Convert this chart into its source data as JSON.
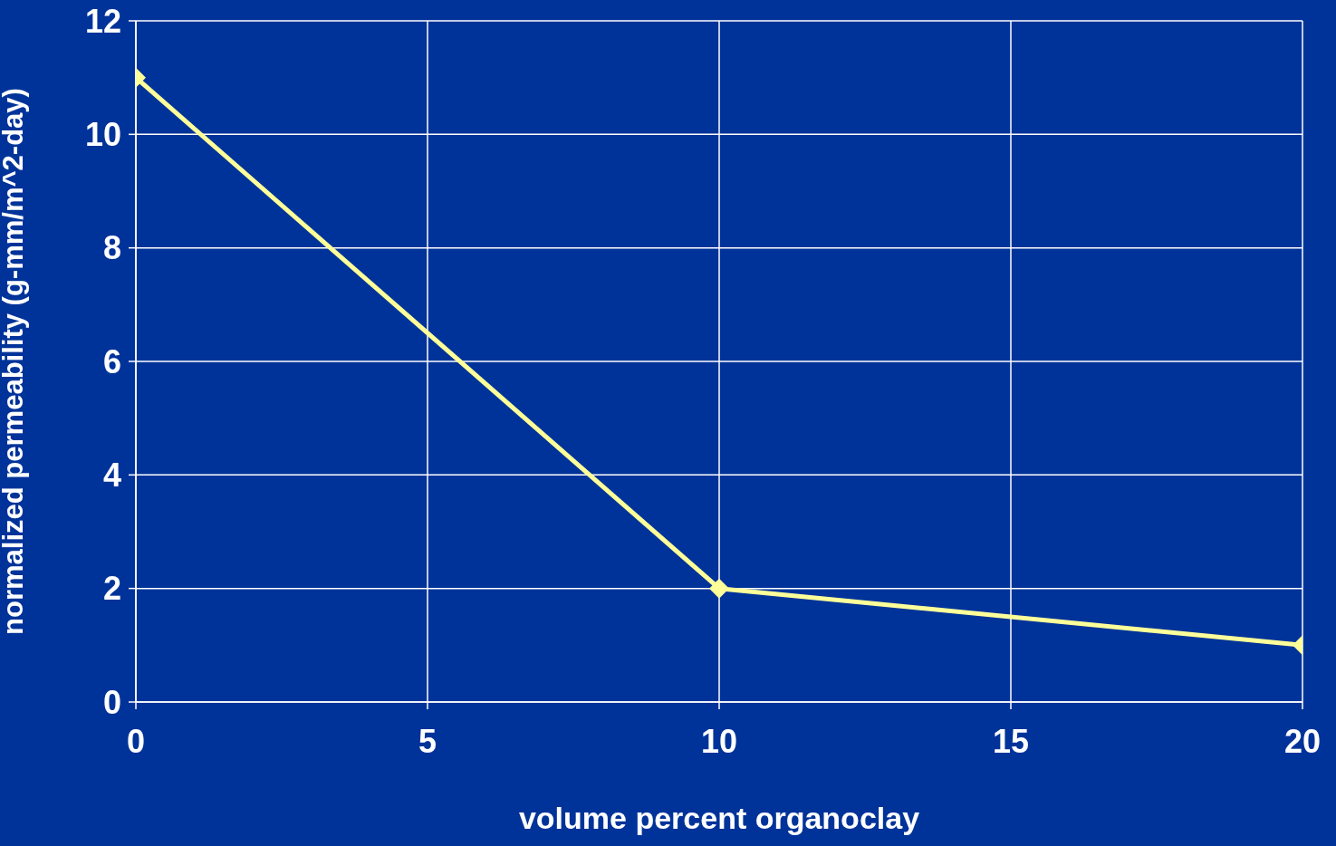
{
  "chart_data": {
    "type": "line",
    "xlabel": "volume percent organoclay",
    "ylabel": "normalized permeability (g-mm/m^2-day)",
    "x": [
      0,
      10,
      20
    ],
    "series": [
      {
        "color": "#ffff99",
        "values": [
          11,
          2,
          1
        ]
      }
    ],
    "xlim": [
      0,
      20
    ],
    "xticks": [
      0,
      5,
      10,
      15,
      20
    ],
    "ylim": [
      0,
      12
    ],
    "yticks": [
      0,
      2,
      4,
      6,
      8,
      10,
      12
    ],
    "grid": true,
    "marker": "diamond",
    "line_style": "solid"
  }
}
